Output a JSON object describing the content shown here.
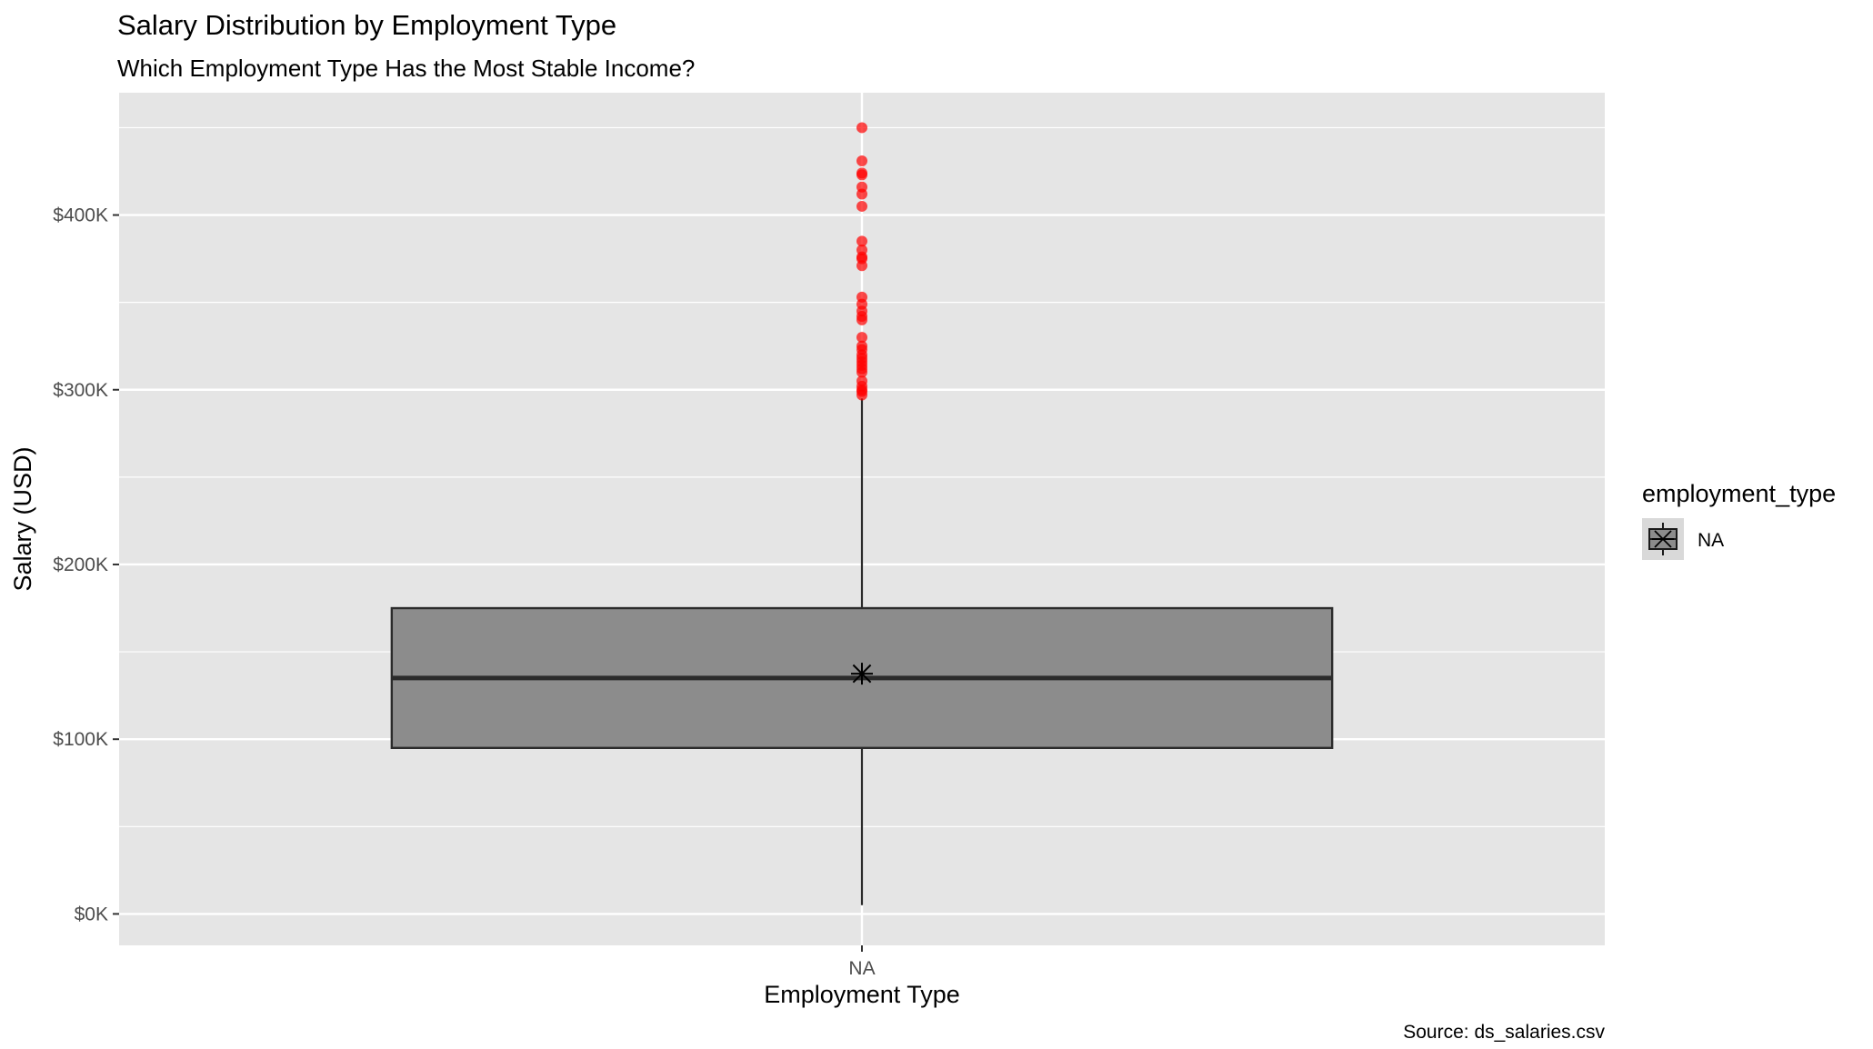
{
  "chart_data": {
    "type": "boxplot",
    "title": "Salary Distribution by Employment Type",
    "subtitle": "Which Employment Type Has the Most Stable Income?",
    "xlabel": "Employment Type",
    "ylabel": "Salary (USD)",
    "caption": "Source: ds_salaries.csv",
    "categories": [
      "NA"
    ],
    "ylim": [
      -18000,
      470000
    ],
    "yticks": [
      0,
      100000,
      200000,
      300000,
      400000
    ],
    "ytick_labels": [
      "$0K",
      "$100K",
      "$200K",
      "$300K",
      "$400K"
    ],
    "grid": true,
    "legend": {
      "title": "employment_type",
      "position": "right",
      "entries": [
        "NA"
      ]
    },
    "boxes": [
      {
        "category": "NA",
        "whisker_low": 5000,
        "q1": 95000,
        "median": 135000,
        "q3": 175000,
        "whisker_high": 295000,
        "mean": 137500,
        "outliers": [
          450000,
          431000,
          424000,
          423000,
          416000,
          412000,
          405000,
          385000,
          380000,
          376000,
          375000,
          371000,
          353000,
          349000,
          345000,
          342000,
          340000,
          330000,
          325000,
          323000,
          320000,
          318000,
          316000,
          314000,
          312000,
          310000,
          305000,
          302000,
          300000,
          299000,
          297000
        ]
      }
    ],
    "colors": {
      "panel_background": "#e5e5e5",
      "grid": "#ffffff",
      "box_fill": "#8c8c8c",
      "box_outline": "#2b2b2b",
      "outlier": "#ff0000"
    }
  }
}
